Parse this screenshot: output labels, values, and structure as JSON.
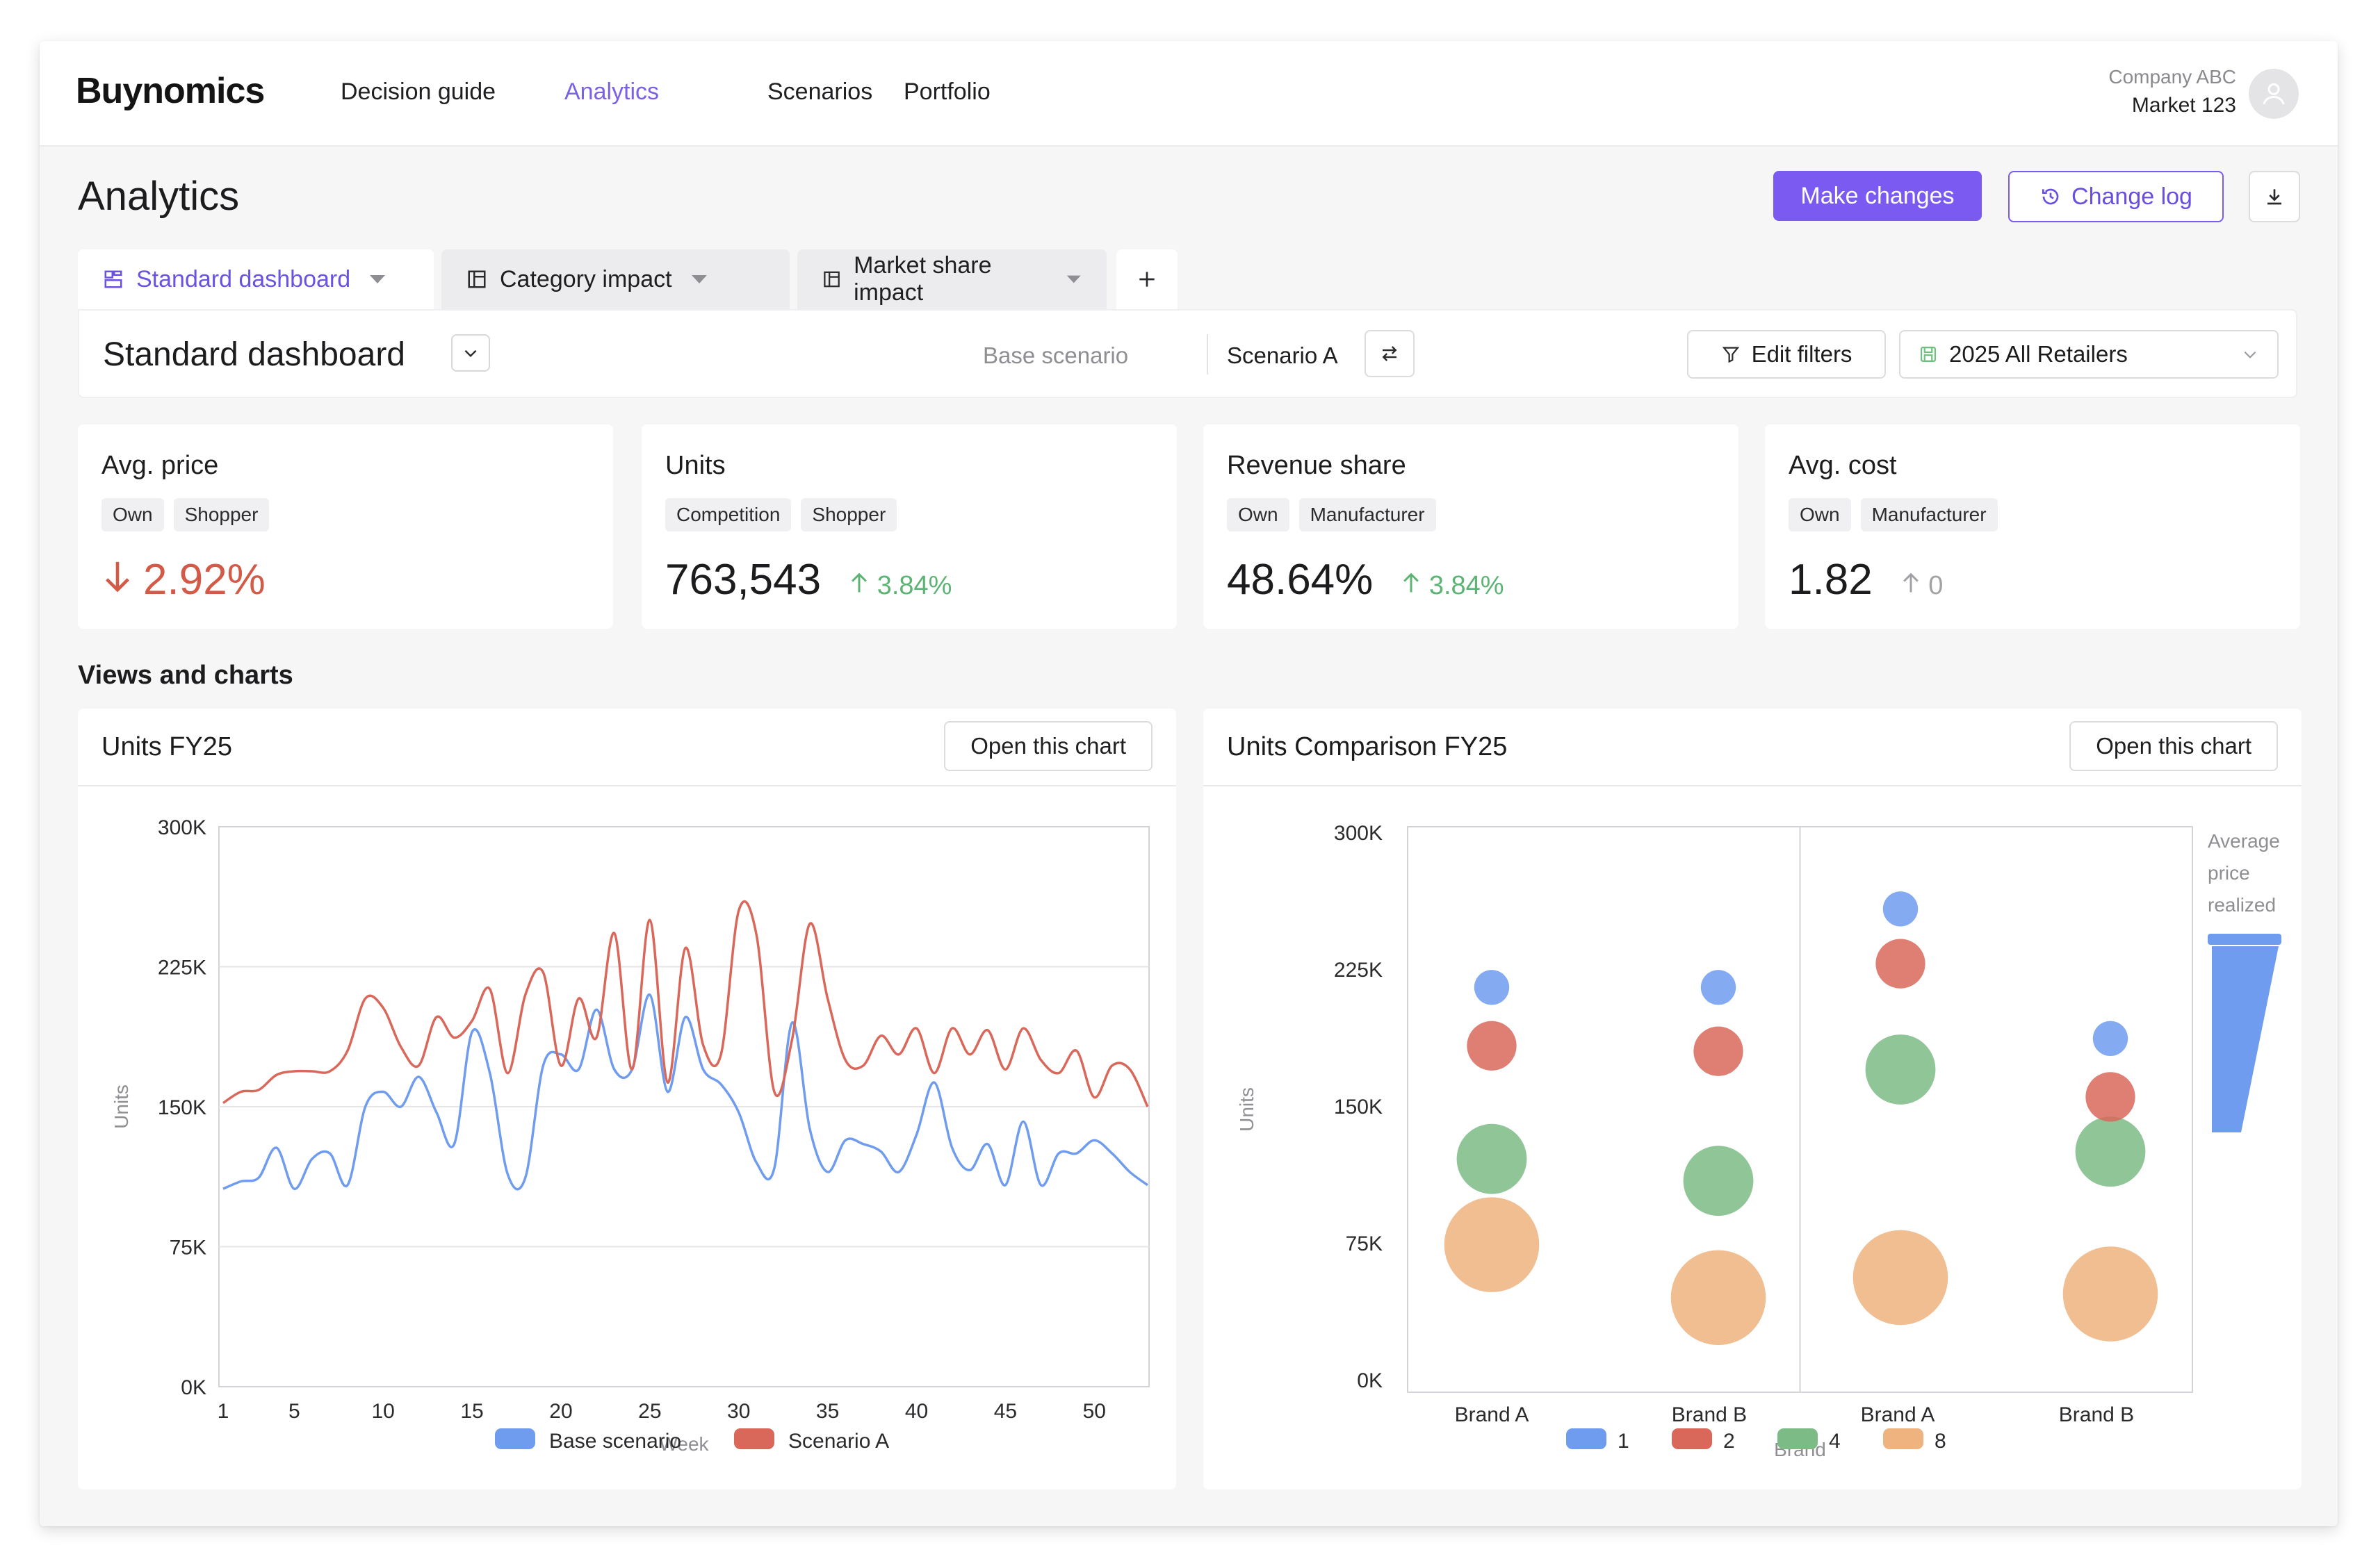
{
  "app": {
    "logo": "Buynomics",
    "nav": [
      "Decision guide",
      "Analytics",
      "Scenarios",
      "Portfolio"
    ],
    "active_nav": "Analytics",
    "company": "Company ABC",
    "market": "Market 123"
  },
  "header": {
    "title": "Analytics",
    "make_changes": "Make changes",
    "change_log": "Change log"
  },
  "tabs": [
    {
      "label": "Standard dashboard",
      "active": true
    },
    {
      "label": "Category impact",
      "active": false
    },
    {
      "label": "Market share impact",
      "active": false
    }
  ],
  "dashbar": {
    "title": "Standard dashboard",
    "base_label": "Base scenario",
    "scenario": "Scenario A",
    "edit_filters": "Edit filters",
    "retailer": "2025 All Retailers"
  },
  "kpis": [
    {
      "title": "Avg. price",
      "tags": [
        "Own",
        "Shopper"
      ],
      "value": "2.92%",
      "direction": "down",
      "delta": ""
    },
    {
      "title": "Units",
      "tags": [
        "Competition",
        "Shopper"
      ],
      "value": "763,543",
      "direction": "up",
      "delta": "3.84%"
    },
    {
      "title": "Revenue share",
      "tags": [
        "Own",
        "Manufacturer"
      ],
      "value": "48.64%",
      "direction": "up",
      "delta": "3.84%"
    },
    {
      "title": "Avg. cost",
      "tags": [
        "Own",
        "Manufacturer"
      ],
      "value": "1.82",
      "direction": "up",
      "delta": "0"
    }
  ],
  "section_title": "Views and charts",
  "open_chart_label": "Open this chart",
  "colors": {
    "accent": "#7a5af0",
    "base": "#6f9cee",
    "scenario": "#d9675a",
    "green": "#7dbb86",
    "orange": "#efb37f",
    "up": "#5db374",
    "down": "#d45a48"
  },
  "chart_data": [
    {
      "type": "line",
      "title": "Units FY25",
      "xlabel": "Week",
      "ylabel": "Units",
      "ylim": [
        0,
        300000
      ],
      "yticks": [
        "0K",
        "75K",
        "150K",
        "225K",
        "300K"
      ],
      "xticks": [
        1,
        5,
        10,
        15,
        20,
        25,
        30,
        35,
        40,
        45,
        50
      ],
      "x": [
        1,
        2,
        3,
        4,
        5,
        6,
        7,
        8,
        9,
        10,
        11,
        12,
        13,
        14,
        15,
        16,
        17,
        18,
        19,
        20,
        21,
        22,
        23,
        24,
        25,
        26,
        27,
        28,
        29,
        30,
        31,
        32,
        33,
        34,
        35,
        36,
        37,
        38,
        39,
        40,
        41,
        42,
        43,
        44,
        45,
        46,
        47,
        48,
        49,
        50,
        51,
        52,
        53
      ],
      "series": [
        {
          "name": "Base scenario",
          "values": [
            106000,
            110000,
            112000,
            128000,
            106000,
            122000,
            125000,
            108000,
            150000,
            158000,
            150000,
            166000,
            147000,
            130000,
            190000,
            168000,
            114000,
            112000,
            172000,
            178000,
            170000,
            202000,
            170000,
            170000,
            210000,
            158000,
            198000,
            170000,
            162000,
            147000,
            120000,
            117000,
            195000,
            138000,
            115000,
            132000,
            130000,
            126000,
            115000,
            135000,
            163000,
            128000,
            116000,
            130000,
            108000,
            142000,
            108000,
            125000,
            125000,
            132000,
            125000,
            115000,
            108000
          ]
        },
        {
          "name": "Scenario A",
          "values": [
            152000,
            158000,
            159000,
            167000,
            169000,
            169000,
            169000,
            180000,
            208000,
            203000,
            182000,
            172000,
            198000,
            187000,
            196000,
            213000,
            168000,
            210000,
            222000,
            172000,
            208000,
            187000,
            243000,
            170000,
            250000,
            163000,
            235000,
            183000,
            178000,
            255000,
            242000,
            158000,
            186000,
            248000,
            208000,
            175000,
            172000,
            188000,
            178000,
            192000,
            168000,
            192000,
            178000,
            191000,
            170000,
            192000,
            175000,
            168000,
            180000,
            155000,
            172000,
            170000,
            150000
          ]
        }
      ]
    },
    {
      "type": "scatter",
      "title": "Units Comparison FY25",
      "xlabel": "Brand",
      "ylabel": "Units",
      "ylim": [
        0,
        300000
      ],
      "yticks": [
        "0K",
        "75K",
        "150K",
        "225K",
        "300K"
      ],
      "categories": [
        "Brand A",
        "Brand B",
        "Brand A",
        "Brand B"
      ],
      "series": [
        {
          "name": "1",
          "values": [
            215000,
            215000,
            258000,
            187000
          ]
        },
        {
          "name": "2",
          "values": [
            183000,
            180000,
            228000,
            155000
          ]
        },
        {
          "name": "4",
          "values": [
            121000,
            109000,
            170000,
            125000
          ]
        },
        {
          "name": "8",
          "values": [
            74000,
            45000,
            56000,
            47000
          ]
        }
      ],
      "sizes": [
        1,
        2,
        4,
        8
      ],
      "colorbar_label": [
        "Average",
        "price",
        "realized"
      ]
    }
  ]
}
